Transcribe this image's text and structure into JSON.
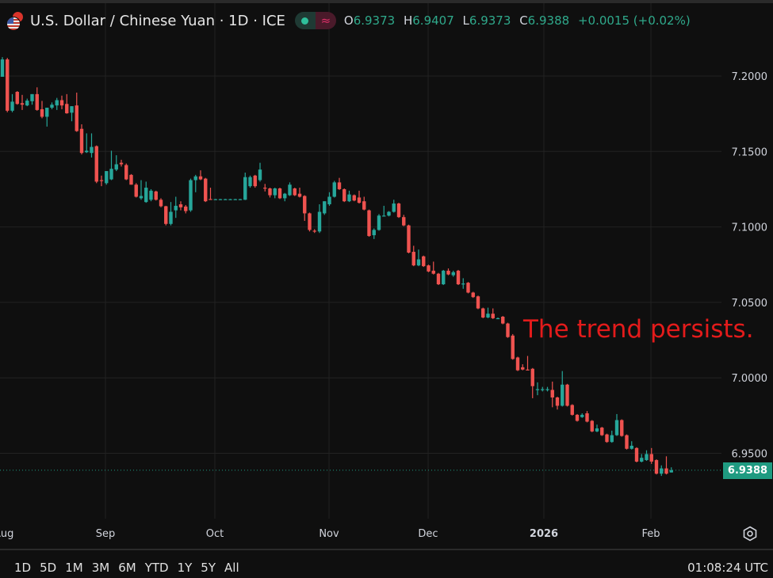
{
  "header": {
    "title": "U.S. Dollar / Chinese Yuan · 1D · ICE",
    "icons": [
      "us-flag-icon",
      "cn-flag-icon",
      "market-open-dot-icon",
      "wave-approx-icon"
    ],
    "approx_symbol": "≈",
    "ohlc": {
      "o_label": "O",
      "o": "6.9373",
      "h_label": "H",
      "h": "6.9407",
      "l_label": "L",
      "l": "6.9373",
      "c_label": "C",
      "c": "6.9388",
      "change": "+0.0015 (+0.02%)"
    }
  },
  "annotation": "The trend persists.",
  "last_price_tag": "6.9388",
  "toolbar": {
    "ranges": [
      "1D",
      "5D",
      "1M",
      "3M",
      "6M",
      "YTD",
      "1Y",
      "5Y",
      "All"
    ],
    "clock": "01:08:24 UTC",
    "settings_icon": "gear-icon"
  },
  "colors": {
    "up": "#26a69a",
    "down": "#ef5350",
    "background": "#0f0f0f",
    "annotation": "#e31b1b",
    "grid": "#222222"
  },
  "chart_data": {
    "type": "candlestick",
    "title": "U.S. Dollar / Chinese Yuan · 1D · ICE",
    "x_tick_labels": [
      "Aug",
      "Sep",
      "Oct",
      "Nov",
      "Dec",
      "2026",
      "Feb"
    ],
    "y_tick_labels": [
      "7.2000",
      "7.1500",
      "7.1000",
      "7.0500",
      "7.0000",
      "6.9500"
    ],
    "y_ticks": [
      7.2,
      7.15,
      7.1,
      7.05,
      7.0,
      6.95
    ],
    "ylim": [
      6.905,
      7.25
    ],
    "grid": true,
    "last_price": 6.9388,
    "ohlc_fields": [
      "open",
      "high",
      "low",
      "close"
    ],
    "candles": [
      [
        7.1995,
        7.2125,
        7.1995,
        7.211
      ],
      [
        7.211,
        7.212,
        7.176,
        7.177
      ],
      [
        7.177,
        7.188,
        7.176,
        7.183
      ],
      [
        7.1895,
        7.19,
        7.181,
        7.1815
      ],
      [
        7.182,
        7.1875,
        7.1775,
        7.181
      ],
      [
        7.1805,
        7.185,
        7.18,
        7.1837
      ],
      [
        7.1833,
        7.188,
        7.181,
        7.188
      ],
      [
        7.188,
        7.1925,
        7.177,
        7.1775
      ],
      [
        7.178,
        7.1835,
        7.172,
        7.173
      ],
      [
        7.173,
        7.179,
        7.1665,
        7.179
      ],
      [
        7.179,
        7.1825,
        7.178,
        7.181
      ],
      [
        7.1805,
        7.1855,
        7.1775,
        7.184
      ],
      [
        7.184,
        7.187,
        7.178,
        7.1805
      ],
      [
        7.1815,
        7.188,
        7.175,
        7.1753
      ],
      [
        7.1757,
        7.18,
        7.17,
        7.18
      ],
      [
        7.1805,
        7.189,
        7.163,
        7.1635
      ],
      [
        7.165,
        7.168,
        7.148,
        7.149
      ],
      [
        7.1495,
        7.162,
        7.149,
        7.1505
      ],
      [
        7.149,
        7.162,
        7.146,
        7.153
      ],
      [
        7.1535,
        7.154,
        7.129,
        7.13
      ],
      [
        7.131,
        7.134,
        7.127,
        7.1305
      ],
      [
        7.129,
        7.137,
        7.128,
        7.137
      ],
      [
        7.1315,
        7.1505,
        7.131,
        7.1385
      ],
      [
        7.138,
        7.1475,
        7.137,
        7.1415
      ],
      [
        7.1425,
        7.1445,
        7.14,
        7.1415
      ],
      [
        7.141,
        7.142,
        7.131,
        7.1315
      ],
      [
        7.1345,
        7.135,
        7.128,
        7.128
      ],
      [
        7.128,
        7.129,
        7.1195,
        7.12
      ],
      [
        7.119,
        7.131,
        7.118,
        7.1205
      ],
      [
        7.1165,
        7.13,
        7.116,
        7.126
      ],
      [
        7.118,
        7.125,
        7.117,
        7.124
      ],
      [
        7.1235,
        7.124,
        7.1175,
        7.118
      ],
      [
        7.118,
        7.119,
        7.113,
        7.1137
      ],
      [
        7.1137,
        7.114,
        7.101,
        7.102
      ],
      [
        7.102,
        7.1165,
        7.101,
        7.11
      ],
      [
        7.111,
        7.12,
        7.106,
        7.114
      ],
      [
        7.115,
        7.117,
        7.111,
        7.113
      ],
      [
        7.1135,
        7.1145,
        7.109,
        7.1105
      ],
      [
        7.111,
        7.132,
        7.11,
        7.131
      ],
      [
        7.131,
        7.1345,
        7.123,
        7.1335
      ],
      [
        7.1335,
        7.1375,
        7.131,
        7.1315
      ],
      [
        7.132,
        7.1325,
        7.1165,
        7.117
      ],
      [
        7.1185,
        7.126,
        7.118,
        7.118
      ],
      [
        7.1184,
        7.1186,
        7.1182,
        7.1184
      ],
      [
        7.1184,
        7.1186,
        7.1182,
        7.1184
      ],
      [
        7.1184,
        7.1186,
        7.1182,
        7.1184
      ],
      [
        7.1184,
        7.1186,
        7.1182,
        7.1184
      ],
      [
        7.1184,
        7.1186,
        7.1182,
        7.1184
      ],
      [
        7.1184,
        7.1186,
        7.1182,
        7.1184
      ],
      [
        7.118,
        7.136,
        7.1178,
        7.133
      ],
      [
        7.127,
        7.134,
        7.126,
        7.133
      ],
      [
        7.134,
        7.1345,
        7.126,
        7.127
      ],
      [
        7.131,
        7.1425,
        7.13,
        7.138
      ],
      [
        7.126,
        7.1285,
        7.1235,
        7.1255
      ],
      [
        7.1255,
        7.126,
        7.1195,
        7.121
      ],
      [
        7.121,
        7.126,
        7.119,
        7.1255
      ],
      [
        7.1255,
        7.126,
        7.1185,
        7.119
      ],
      [
        7.119,
        7.1225,
        7.117,
        7.122
      ],
      [
        7.121,
        7.1295,
        7.1205,
        7.128
      ],
      [
        7.1255,
        7.126,
        7.1205,
        7.121
      ],
      [
        7.122,
        7.126,
        7.1195,
        7.12
      ],
      [
        7.1205,
        7.121,
        7.104,
        7.109
      ],
      [
        7.109,
        7.1095,
        7.097,
        7.098
      ],
      [
        7.0975,
        7.0985,
        7.096,
        7.097
      ],
      [
        7.097,
        7.115,
        7.096,
        7.11
      ],
      [
        7.109,
        7.117,
        7.108,
        7.117
      ],
      [
        7.115,
        7.123,
        7.114,
        7.12
      ],
      [
        7.12,
        7.1305,
        7.1195,
        7.1295
      ],
      [
        7.1295,
        7.1325,
        7.1245,
        7.125
      ],
      [
        7.125,
        7.1255,
        7.1165,
        7.117
      ],
      [
        7.117,
        7.124,
        7.1165,
        7.1215
      ],
      [
        7.121,
        7.1215,
        7.117,
        7.1175
      ],
      [
        7.1195,
        7.124,
        7.1155,
        7.116
      ],
      [
        7.117,
        7.12,
        7.111,
        7.1115
      ],
      [
        7.111,
        7.1115,
        7.0935,
        7.094
      ],
      [
        7.0945,
        7.099,
        7.092,
        7.098
      ],
      [
        7.098,
        7.1085,
        7.0975,
        7.1075
      ],
      [
        7.1075,
        7.114,
        7.107,
        7.1075
      ],
      [
        7.1075,
        7.1105,
        7.107,
        7.11
      ],
      [
        7.11,
        7.118,
        7.1095,
        7.1155
      ],
      [
        7.1155,
        7.116,
        7.106,
        7.1065
      ],
      [
        7.1065,
        7.108,
        7.1005,
        7.101
      ],
      [
        7.101,
        7.1015,
        7.0825,
        7.083
      ],
      [
        7.0835,
        7.0875,
        7.074,
        7.0745
      ],
      [
        7.0745,
        7.085,
        7.074,
        7.0785
      ],
      [
        7.0805,
        7.081,
        7.0735,
        7.074
      ],
      [
        7.0745,
        7.075,
        7.07,
        7.0705
      ],
      [
        7.071,
        7.077,
        7.0685,
        7.069
      ],
      [
        7.069,
        7.0695,
        7.0615,
        7.062
      ],
      [
        7.062,
        7.0715,
        7.0615,
        7.071
      ],
      [
        7.071,
        7.0725,
        7.068,
        7.0685
      ],
      [
        7.068,
        7.071,
        7.067,
        7.07
      ],
      [
        7.071,
        7.0715,
        7.0615,
        7.062
      ],
      [
        7.0625,
        7.066,
        7.059,
        7.0625
      ],
      [
        7.063,
        7.0635,
        7.056,
        7.0565
      ],
      [
        7.0565,
        7.057,
        7.053,
        7.0535
      ],
      [
        7.054,
        7.0545,
        7.0455,
        7.046
      ],
      [
        7.046,
        7.0465,
        7.0395,
        7.04
      ],
      [
        7.04,
        7.0465,
        7.0395,
        7.0425
      ],
      [
        7.0425,
        7.046,
        7.039,
        7.0395
      ],
      [
        7.0395,
        7.04,
        7.039,
        7.0395
      ],
      [
        7.0405,
        7.041,
        7.0355,
        7.036
      ],
      [
        7.036,
        7.0365,
        7.0265,
        7.027
      ],
      [
        7.028,
        7.029,
        7.012,
        7.0125
      ],
      [
        7.0135,
        7.014,
        7.0045,
        7.005
      ],
      [
        7.007,
        7.009,
        7.005,
        7.0055
      ],
      [
        7.0055,
        7.0145,
        7.005,
        7.005
      ],
      [
        7.006,
        7.0065,
        6.9865,
        6.9945
      ],
      [
        6.992,
        6.997,
        6.9885,
        6.9925
      ],
      [
        6.9922,
        6.994,
        6.991,
        6.9925
      ],
      [
        6.9922,
        6.994,
        6.991,
        6.9925
      ],
      [
        6.992,
        6.9975,
        6.9805,
        6.987
      ],
      [
        6.987,
        6.9875,
        6.979,
        6.9815
      ],
      [
        6.9815,
        7.0045,
        6.981,
        6.9955
      ],
      [
        6.9955,
        6.996,
        6.981,
        6.9815
      ],
      [
        6.982,
        6.9825,
        6.975,
        6.9755
      ],
      [
        6.9755,
        6.976,
        6.971,
        6.9715
      ],
      [
        6.974,
        6.9765,
        6.9735,
        6.9755
      ],
      [
        6.9765,
        6.978,
        6.9705,
        6.971
      ],
      [
        6.9715,
        6.972,
        6.964,
        6.9645
      ],
      [
        6.9645,
        6.969,
        6.964,
        6.9665
      ],
      [
        6.967,
        6.9675,
        6.9615,
        6.962
      ],
      [
        6.9625,
        6.963,
        6.957,
        6.9575
      ],
      [
        6.9575,
        6.965,
        6.957,
        6.962
      ],
      [
        6.962,
        6.976,
        6.9615,
        6.972
      ],
      [
        6.972,
        6.9725,
        6.961,
        6.9615
      ],
      [
        6.962,
        6.9625,
        6.9525,
        6.953
      ],
      [
        6.953,
        6.958,
        6.9525,
        6.955
      ],
      [
        6.9535,
        6.954,
        6.944,
        6.9445
      ],
      [
        6.9445,
        6.9495,
        6.944,
        6.947
      ],
      [
        6.9455,
        6.952,
        6.945,
        6.9495
      ],
      [
        6.9495,
        6.9535,
        6.943,
        6.9445
      ],
      [
        6.9455,
        6.946,
        6.936,
        6.9365
      ],
      [
        6.9365,
        6.942,
        6.935,
        6.94
      ],
      [
        6.94,
        6.948,
        6.936,
        6.9365
      ],
      [
        6.9373,
        6.9407,
        6.9373,
        6.9388
      ]
    ]
  }
}
